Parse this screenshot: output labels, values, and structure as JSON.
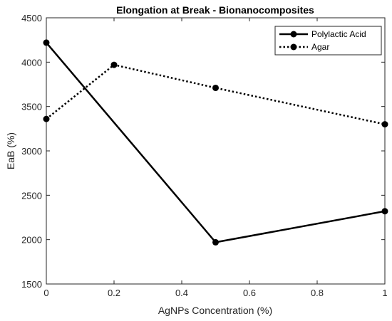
{
  "chart_data": {
    "type": "line",
    "title": "Elongation at Break - Bionanocomposites",
    "xlabel": "AgNPs Concentration (%)",
    "ylabel": "EaB (%)",
    "xlim": [
      0,
      1
    ],
    "ylim": [
      1500,
      4500
    ],
    "xticks": [
      0,
      0.2,
      0.4,
      0.6,
      0.8,
      1
    ],
    "xtick_labels": [
      "0",
      "0.2",
      "0.4",
      "0.6",
      "0.8",
      "1"
    ],
    "yticks": [
      1500,
      2000,
      2500,
      3000,
      3500,
      4000,
      4500
    ],
    "ytick_labels": [
      "1500",
      "2000",
      "2500",
      "3000",
      "3500",
      "4000",
      "4500"
    ],
    "grid": false,
    "legend_position": "top-right",
    "series": [
      {
        "name": "Polylactic Acid",
        "x": [
          0,
          0.5,
          1
        ],
        "y": [
          4220,
          1970,
          2320
        ],
        "color": "#000000",
        "line_style": "solid",
        "marker": "circle"
      },
      {
        "name": "Agar",
        "x": [
          0,
          0.2,
          0.5,
          1
        ],
        "y": [
          3360,
          3970,
          3710,
          3300
        ],
        "color": "#000000",
        "line_style": "dotted",
        "marker": "circle"
      }
    ]
  }
}
